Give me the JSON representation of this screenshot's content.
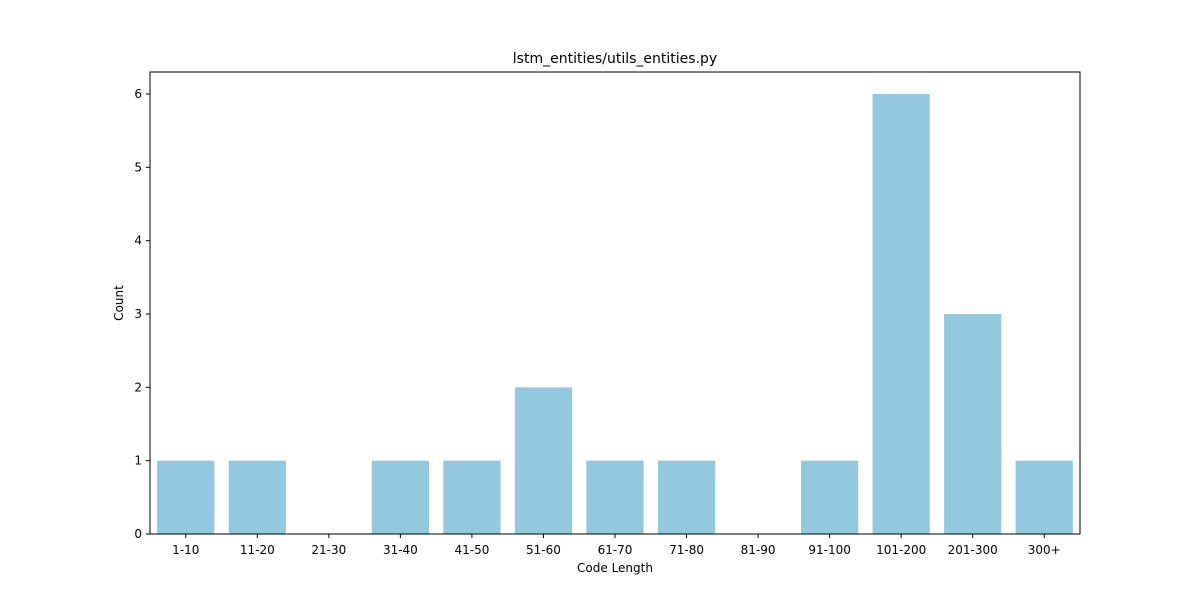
{
  "chart_data": {
    "type": "bar",
    "title": "lstm_entities/utils_entities.py",
    "xlabel": "Code Length",
    "ylabel": "Count",
    "categories": [
      "1-10",
      "11-20",
      "21-30",
      "31-40",
      "41-50",
      "51-60",
      "61-70",
      "71-80",
      "81-90",
      "91-100",
      "101-200",
      "201-300",
      "300+"
    ],
    "values": [
      1,
      1,
      0,
      1,
      1,
      2,
      1,
      1,
      0,
      1,
      6,
      3,
      1
    ],
    "ylim": [
      0,
      6.3
    ],
    "yticks": [
      0,
      1,
      2,
      3,
      4,
      5,
      6
    ],
    "grid": false,
    "bar_color": "#92c9df"
  }
}
